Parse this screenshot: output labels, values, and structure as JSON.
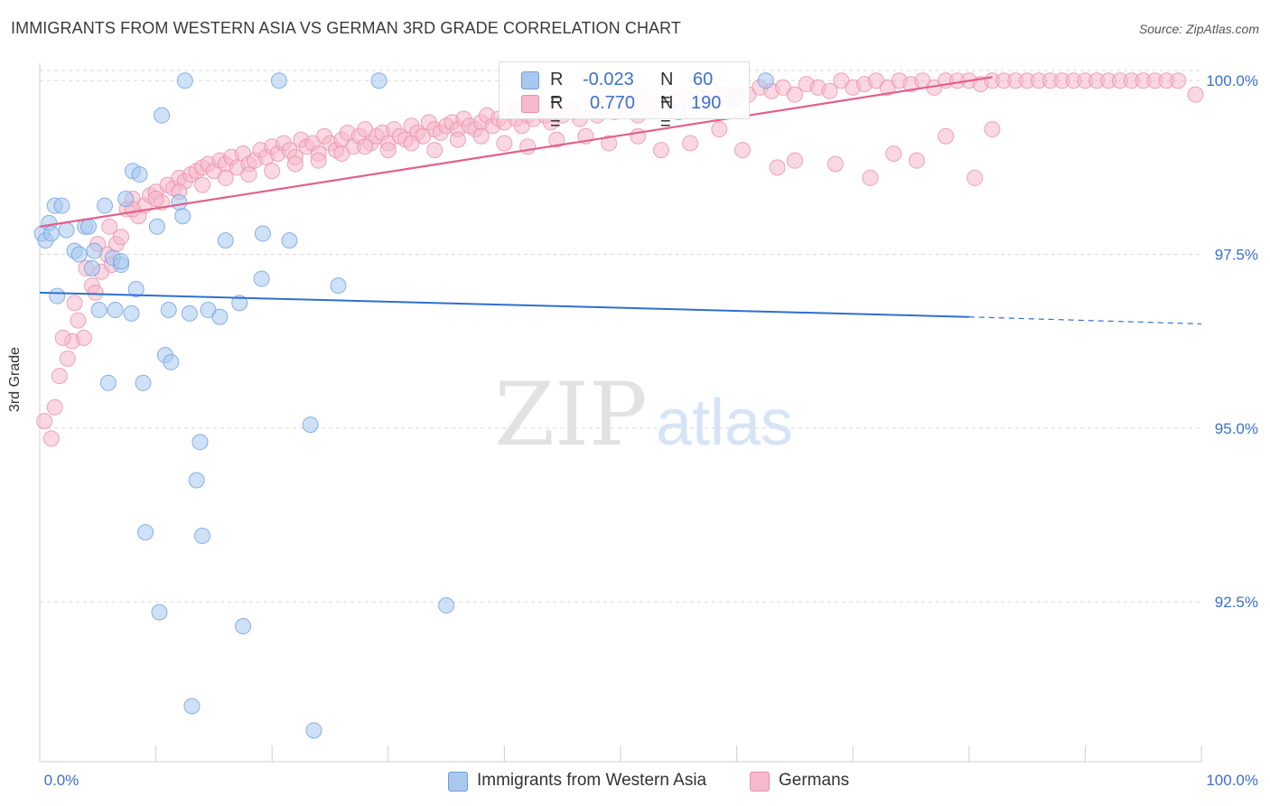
{
  "title": "IMMIGRANTS FROM WESTERN ASIA VS GERMAN 3RD GRADE CORRELATION CHART",
  "source": "Source: ZipAtlas.com",
  "colors": {
    "blue_fill": "#a8c8f0",
    "blue_stroke": "#6f9fe0",
    "blue_line": "#2f6fcf",
    "pink_fill": "#f6b8cc",
    "pink_stroke": "#e890aa",
    "pink_line": "#e2608a",
    "tick_label": "#3b6fd1",
    "grid": "#d8d8d8"
  },
  "legend_top": {
    "rows": [
      {
        "r_label": "R =",
        "r_value": "-0.023",
        "n_label": "N =",
        "n_value": "60"
      },
      {
        "r_label": "R =",
        "r_value": "0.770",
        "n_label": "N =",
        "n_value": "190"
      }
    ]
  },
  "legend_bottom": {
    "items": [
      {
        "label": "Immigrants from Western Asia"
      },
      {
        "label": "Germans"
      }
    ]
  },
  "watermark": {
    "zip": "ZIP",
    "atlas": "atlas"
  },
  "chart_data": {
    "type": "scatter",
    "title": "IMMIGRANTS FROM WESTERN ASIA VS GERMAN 3RD GRADE CORRELATION CHART",
    "xlabel": "",
    "ylabel": "3rd Grade",
    "xlim": [
      0,
      100
    ],
    "ylim": [
      90.2,
      100.25
    ],
    "x_tick_labels": [
      "0.0%",
      "100.0%"
    ],
    "y_ticks": [
      92.5,
      95.0,
      97.5,
      100.0
    ],
    "y_tick_labels": [
      "92.5%",
      "95.0%",
      "97.5%",
      "100.0%"
    ],
    "grid": true,
    "legend_position": "top-center",
    "series": [
      {
        "name": "Immigrants from Western Asia",
        "color": "#a8c8f0",
        "trend": {
          "x": [
            0,
            80
          ],
          "y": [
            96.95,
            96.6
          ],
          "dashed_to": [
            100,
            96.5
          ]
        },
        "points": [
          [
            0.2,
            97.8
          ],
          [
            0.5,
            97.7
          ],
          [
            0.8,
            97.95
          ],
          [
            1.0,
            97.8
          ],
          [
            1.3,
            98.2
          ],
          [
            1.5,
            96.9
          ],
          [
            1.9,
            98.2
          ],
          [
            2.3,
            97.85
          ],
          [
            3.0,
            97.55
          ],
          [
            3.4,
            97.5
          ],
          [
            3.9,
            97.9
          ],
          [
            4.2,
            97.9
          ],
          [
            4.5,
            97.3
          ],
          [
            4.7,
            97.55
          ],
          [
            5.1,
            96.7
          ],
          [
            5.6,
            98.2
          ],
          [
            5.9,
            95.65
          ],
          [
            6.3,
            97.45
          ],
          [
            6.5,
            96.7
          ],
          [
            7.0,
            97.35
          ],
          [
            7.0,
            97.4
          ],
          [
            7.4,
            98.3
          ],
          [
            7.9,
            96.65
          ],
          [
            8.0,
            98.7
          ],
          [
            8.3,
            97.0
          ],
          [
            8.6,
            98.65
          ],
          [
            8.9,
            95.65
          ],
          [
            9.1,
            93.5
          ],
          [
            10.1,
            97.9
          ],
          [
            10.3,
            92.35
          ],
          [
            10.5,
            99.5
          ],
          [
            10.8,
            96.05
          ],
          [
            11.1,
            96.7
          ],
          [
            11.3,
            95.95
          ],
          [
            12.0,
            98.25
          ],
          [
            12.3,
            98.05
          ],
          [
            12.5,
            100.0
          ],
          [
            12.9,
            96.65
          ],
          [
            13.1,
            91.0
          ],
          [
            13.5,
            94.25
          ],
          [
            13.8,
            94.8
          ],
          [
            14.0,
            93.45
          ],
          [
            14.5,
            96.7
          ],
          [
            15.5,
            96.6
          ],
          [
            16.0,
            97.7
          ],
          [
            17.2,
            96.8
          ],
          [
            17.5,
            92.15
          ],
          [
            19.1,
            97.15
          ],
          [
            19.2,
            97.8
          ],
          [
            20.6,
            100.0
          ],
          [
            21.5,
            97.7
          ],
          [
            23.3,
            95.05
          ],
          [
            23.6,
            90.65
          ],
          [
            25.7,
            97.05
          ],
          [
            29.2,
            100.0
          ],
          [
            35.0,
            92.45
          ],
          [
            41.2,
            99.6
          ],
          [
            55.0,
            99.55
          ],
          [
            60.0,
            99.75
          ],
          [
            62.5,
            100.0
          ]
        ]
      },
      {
        "name": "Germans",
        "color": "#f6b8cc",
        "trend": {
          "x": [
            0,
            82
          ],
          "y": [
            97.9,
            100.05
          ]
        },
        "points": [
          [
            0.4,
            95.1
          ],
          [
            1.0,
            94.85
          ],
          [
            1.3,
            95.3
          ],
          [
            1.7,
            95.75
          ],
          [
            2.4,
            96.0
          ],
          [
            2.8,
            96.25
          ],
          [
            3.3,
            96.55
          ],
          [
            3.8,
            96.3
          ],
          [
            4.5,
            97.05
          ],
          [
            4.8,
            96.95
          ],
          [
            5.3,
            97.25
          ],
          [
            5.8,
            97.5
          ],
          [
            6.2,
            97.35
          ],
          [
            6.6,
            97.65
          ],
          [
            7.0,
            97.75
          ],
          [
            7.5,
            98.15
          ],
          [
            8.0,
            98.3
          ],
          [
            8.5,
            98.05
          ],
          [
            9.0,
            98.2
          ],
          [
            9.5,
            98.35
          ],
          [
            10.0,
            98.4
          ],
          [
            10.5,
            98.25
          ],
          [
            11.0,
            98.5
          ],
          [
            11.5,
            98.45
          ],
          [
            12.0,
            98.6
          ],
          [
            12.5,
            98.55
          ],
          [
            13.0,
            98.65
          ],
          [
            13.5,
            98.7
          ],
          [
            14.0,
            98.75
          ],
          [
            14.5,
            98.8
          ],
          [
            15.0,
            98.7
          ],
          [
            15.5,
            98.85
          ],
          [
            16.0,
            98.8
          ],
          [
            16.5,
            98.9
          ],
          [
            17.0,
            98.75
          ],
          [
            17.5,
            98.95
          ],
          [
            18.0,
            98.8
          ],
          [
            18.5,
            98.85
          ],
          [
            19.0,
            99.0
          ],
          [
            19.5,
            98.9
          ],
          [
            20.0,
            99.05
          ],
          [
            20.5,
            98.95
          ],
          [
            21.0,
            99.1
          ],
          [
            21.5,
            99.0
          ],
          [
            22.0,
            98.9
          ],
          [
            22.5,
            99.15
          ],
          [
            23.0,
            99.05
          ],
          [
            23.5,
            99.1
          ],
          [
            24.0,
            98.95
          ],
          [
            24.5,
            99.2
          ],
          [
            25.0,
            99.1
          ],
          [
            25.5,
            99.0
          ],
          [
            26.0,
            99.15
          ],
          [
            26.5,
            99.25
          ],
          [
            27.0,
            99.05
          ],
          [
            27.5,
            99.2
          ],
          [
            28.0,
            99.3
          ],
          [
            28.5,
            99.1
          ],
          [
            29.0,
            99.2
          ],
          [
            29.5,
            99.25
          ],
          [
            30.0,
            99.1
          ],
          [
            30.5,
            99.3
          ],
          [
            31.0,
            99.2
          ],
          [
            31.5,
            99.15
          ],
          [
            32.0,
            99.35
          ],
          [
            32.5,
            99.25
          ],
          [
            33.0,
            99.2
          ],
          [
            33.5,
            99.4
          ],
          [
            34.0,
            99.3
          ],
          [
            34.5,
            99.25
          ],
          [
            35.0,
            99.35
          ],
          [
            35.5,
            99.4
          ],
          [
            36.0,
            99.3
          ],
          [
            36.5,
            99.45
          ],
          [
            37.0,
            99.35
          ],
          [
            37.5,
            99.3
          ],
          [
            38.0,
            99.4
          ],
          [
            38.5,
            99.5
          ],
          [
            39.0,
            99.35
          ],
          [
            39.5,
            99.45
          ],
          [
            40.0,
            99.4
          ],
          [
            40.5,
            99.55
          ],
          [
            41.0,
            99.45
          ],
          [
            41.5,
            99.35
          ],
          [
            42.0,
            99.5
          ],
          [
            42.5,
            99.45
          ],
          [
            43.0,
            99.6
          ],
          [
            43.5,
            99.5
          ],
          [
            44.0,
            99.4
          ],
          [
            44.5,
            99.55
          ],
          [
            45.0,
            99.5
          ],
          [
            45.5,
            99.6
          ],
          [
            46.0,
            99.55
          ],
          [
            46.5,
            99.45
          ],
          [
            47.0,
            99.6
          ],
          [
            47.5,
            99.65
          ],
          [
            48.0,
            99.5
          ],
          [
            48.5,
            99.6
          ],
          [
            49.0,
            99.7
          ],
          [
            49.5,
            99.55
          ],
          [
            50.0,
            99.65
          ],
          [
            50.5,
            99.6
          ],
          [
            51.0,
            99.7
          ],
          [
            51.5,
            99.5
          ],
          [
            52.0,
            99.75
          ],
          [
            52.5,
            99.65
          ],
          [
            53.0,
            99.6
          ],
          [
            53.5,
            99.7
          ],
          [
            54.0,
            99.8
          ],
          [
            54.5,
            99.65
          ],
          [
            55.0,
            99.7
          ],
          [
            55.5,
            99.75
          ],
          [
            56.0,
            99.6
          ],
          [
            56.5,
            99.8
          ],
          [
            57.0,
            99.75
          ],
          [
            57.5,
            99.7
          ],
          [
            58.0,
            99.85
          ],
          [
            58.5,
            99.75
          ],
          [
            59.0,
            99.8
          ],
          [
            59.5,
            99.7
          ],
          [
            60.0,
            99.85
          ],
          [
            61.0,
            99.8
          ],
          [
            62.0,
            99.9
          ],
          [
            63.0,
            99.85
          ],
          [
            64.0,
            99.9
          ],
          [
            65.0,
            99.8
          ],
          [
            66.0,
            99.95
          ],
          [
            67.0,
            99.9
          ],
          [
            68.0,
            99.85
          ],
          [
            69.0,
            100.0
          ],
          [
            70.0,
            99.9
          ],
          [
            71.0,
            99.95
          ],
          [
            72.0,
            100.0
          ],
          [
            73.0,
            99.9
          ],
          [
            74.0,
            100.0
          ],
          [
            75.0,
            99.95
          ],
          [
            76.0,
            100.0
          ],
          [
            77.0,
            99.9
          ],
          [
            78.0,
            100.0
          ],
          [
            79.0,
            100.0
          ],
          [
            80.0,
            100.0
          ],
          [
            81.0,
            99.95
          ],
          [
            82.0,
            100.0
          ],
          [
            83.0,
            100.0
          ],
          [
            84.0,
            100.0
          ],
          [
            85.0,
            100.0
          ],
          [
            86.0,
            100.0
          ],
          [
            87.0,
            100.0
          ],
          [
            88.0,
            100.0
          ],
          [
            89.0,
            100.0
          ],
          [
            90.0,
            100.0
          ],
          [
            91.0,
            100.0
          ],
          [
            92.0,
            100.0
          ],
          [
            93.0,
            100.0
          ],
          [
            94.0,
            100.0
          ],
          [
            95.0,
            100.0
          ],
          [
            96.0,
            100.0
          ],
          [
            97.0,
            100.0
          ],
          [
            98.0,
            100.0
          ],
          [
            99.5,
            99.8
          ],
          [
            60.5,
            99.0
          ],
          [
            63.5,
            98.75
          ],
          [
            65.0,
            98.85
          ],
          [
            68.5,
            98.8
          ],
          [
            71.5,
            98.6
          ],
          [
            73.5,
            98.95
          ],
          [
            75.5,
            98.85
          ],
          [
            78.0,
            99.2
          ],
          [
            80.5,
            98.6
          ],
          [
            82.0,
            99.3
          ],
          [
            58.5,
            99.3
          ],
          [
            56.0,
            99.1
          ],
          [
            53.5,
            99.0
          ],
          [
            51.5,
            99.2
          ],
          [
            49.0,
            99.1
          ],
          [
            47.0,
            99.2
          ],
          [
            44.5,
            99.15
          ],
          [
            42.0,
            99.05
          ],
          [
            40.0,
            99.1
          ],
          [
            38.0,
            99.2
          ],
          [
            36.0,
            99.15
          ],
          [
            34.0,
            99.0
          ],
          [
            32.0,
            99.1
          ],
          [
            30.0,
            99.0
          ],
          [
            28.0,
            99.05
          ],
          [
            26.0,
            98.95
          ],
          [
            24.0,
            98.85
          ],
          [
            22.0,
            98.8
          ],
          [
            20.0,
            98.7
          ],
          [
            18.0,
            98.65
          ],
          [
            16.0,
            98.6
          ],
          [
            14.0,
            98.5
          ],
          [
            12.0,
            98.4
          ],
          [
            10.0,
            98.3
          ],
          [
            8.0,
            98.15
          ],
          [
            6.0,
            97.9
          ],
          [
            5.0,
            97.65
          ],
          [
            4.0,
            97.3
          ],
          [
            3.0,
            96.8
          ],
          [
            2.0,
            96.3
          ]
        ]
      }
    ]
  }
}
